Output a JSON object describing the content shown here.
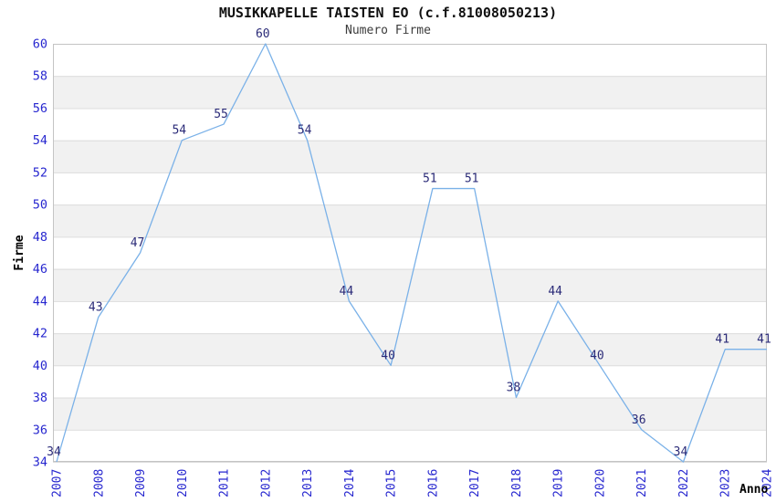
{
  "chart_data": {
    "type": "line",
    "title": "MUSIKKAPELLE TAISTEN EO (c.f.81008050213)",
    "subtitle": "Numero Firme",
    "xlabel": "Anno",
    "ylabel": "Firme",
    "categories": [
      "2007",
      "2008",
      "2009",
      "2010",
      "2011",
      "2012",
      "2013",
      "2014",
      "2015",
      "2016",
      "2017",
      "2018",
      "2019",
      "2020",
      "2021",
      "2022",
      "2023",
      "2024"
    ],
    "values": [
      34,
      43,
      47,
      54,
      55,
      60,
      54,
      44,
      40,
      51,
      51,
      38,
      44,
      40,
      36,
      34,
      41,
      41
    ],
    "ylim": [
      34,
      60
    ],
    "ytick_step": 2,
    "grid": "horizontal-gridlines",
    "banded_background": true,
    "legend_position": "none",
    "markers": "none",
    "data_labels": "above-points",
    "x_tick_rotation": -90,
    "colors": {
      "line": "#7ab1e8",
      "tick_label": "#2727cf",
      "data_label": "#2b2b78",
      "band": "#f1f1f1",
      "gridline": "#dcdcdc",
      "plot_border": "#c4c4c4",
      "title": "#111111",
      "subtitle": "#3c3c3c",
      "axis_title": "#000000",
      "background": "#ffffff"
    }
  }
}
